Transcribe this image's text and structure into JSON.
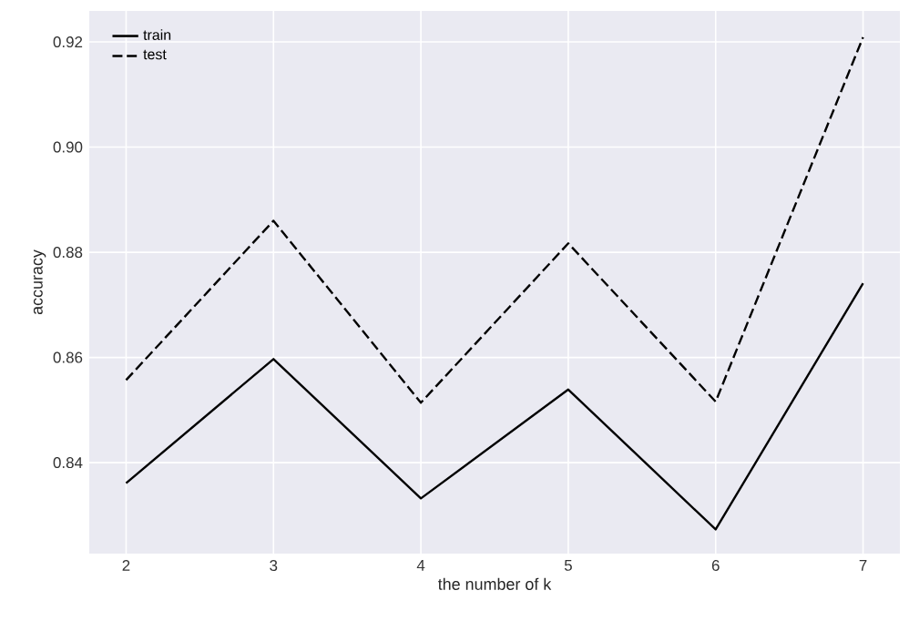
{
  "chart_data": {
    "type": "line",
    "xlabel": "the number of k",
    "ylabel": "accuracy",
    "x": [
      2,
      3,
      4,
      5,
      6,
      7
    ],
    "series": [
      {
        "name": "train",
        "color": "#000000",
        "line_style": "solid",
        "values": [
          0.8361,
          0.8597,
          0.8332,
          0.8539,
          0.8273,
          0.8741
        ]
      },
      {
        "name": "test",
        "color": "#000000",
        "line_style": "dashed",
        "values": [
          0.8557,
          0.886,
          0.8514,
          0.8817,
          0.8516,
          0.9209
        ]
      }
    ],
    "xlim": [
      1.75,
      7.25
    ],
    "ylim": [
      0.8227,
      0.9259
    ],
    "xticks": [
      2,
      3,
      4,
      5,
      6,
      7
    ],
    "yticks": [
      {
        "value": 0.84,
        "label": "0.84"
      },
      {
        "value": 0.86,
        "label": "0.86"
      },
      {
        "value": 0.88,
        "label": "0.88"
      },
      {
        "value": 0.9,
        "label": "0.90"
      },
      {
        "value": 0.92,
        "label": "0.92"
      }
    ],
    "grid": true,
    "legend": "top left"
  }
}
